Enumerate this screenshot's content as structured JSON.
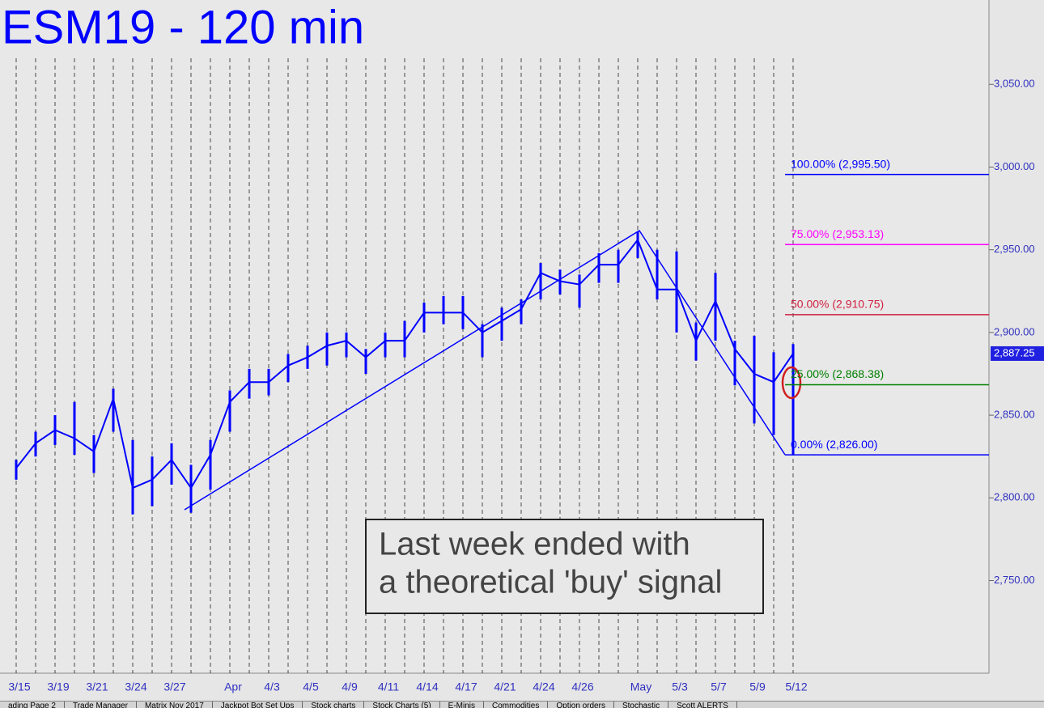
{
  "chart_data": {
    "type": "price",
    "title": "ESM19 - 120 min",
    "categories": [
      "3/15",
      null,
      "3/19",
      null,
      "3/21",
      null,
      "3/24",
      null,
      "3/27",
      null,
      null,
      "Apr",
      null,
      "4/3",
      null,
      "4/5",
      null,
      "4/9",
      null,
      "4/11",
      null,
      "4/14",
      null,
      "4/17",
      null,
      "4/21",
      null,
      "4/24",
      null,
      "4/26",
      null,
      null,
      "May",
      null,
      "5/3",
      null,
      "5/7",
      null,
      "5/9",
      null,
      "5/12"
    ],
    "series": [
      {
        "name": "close",
        "color": "#0000ff",
        "values": [
          2818,
          2833,
          2841,
          2836,
          2828,
          2860,
          2806,
          2811,
          2823,
          2806,
          2826,
          2858,
          2870,
          2870,
          2880,
          2885,
          2892,
          2895,
          2885,
          2895,
          2895,
          2912,
          2912,
          2912,
          2900,
          2907,
          2914,
          2936,
          2931,
          2929,
          2941,
          2941,
          2956,
          2926,
          2926,
          2895,
          2919,
          2890,
          2875,
          2870,
          2887.25
        ]
      },
      {
        "name": "high",
        "color": "#0000ff",
        "values": [
          2823,
          2840,
          2850,
          2858,
          2838,
          2866,
          2835,
          2825,
          2833,
          2820,
          2835,
          2865,
          2878,
          2878,
          2887,
          2892,
          2900,
          2900,
          2890,
          2900,
          2907,
          2918,
          2922,
          2922,
          2905,
          2915,
          2920,
          2942,
          2938,
          2935,
          2948,
          2950,
          2961,
          2950,
          2949,
          2906,
          2936,
          2895,
          2898,
          2888,
          2893
        ]
      },
      {
        "name": "low",
        "color": "#0000ff",
        "values": [
          2811,
          2825,
          2832,
          2826,
          2815,
          2840,
          2790,
          2795,
          2808,
          2791,
          2805,
          2840,
          2860,
          2862,
          2870,
          2878,
          2880,
          2885,
          2875,
          2885,
          2885,
          2900,
          2905,
          2902,
          2885,
          2895,
          2905,
          2920,
          2923,
          2915,
          2930,
          2930,
          2945,
          2920,
          2900,
          2883,
          2895,
          2868,
          2845,
          2838,
          2826
        ]
      }
    ],
    "ylim": [
      2694,
      3101
    ],
    "yticks": [
      {
        "value": 2750,
        "label": "2,750.00"
      },
      {
        "value": 2800,
        "label": "2,800.00"
      },
      {
        "value": 2850,
        "label": "2,850.00"
      },
      {
        "value": 2900,
        "label": "2,900.00"
      },
      {
        "value": 2950,
        "label": "2,950.00"
      },
      {
        "value": 3000,
        "label": "3,000.00"
      },
      {
        "value": 3050,
        "label": "3,050.00"
      }
    ],
    "last_price": {
      "value": 2887.25,
      "label": "2,887.25"
    },
    "levels": [
      {
        "label": "100.00% (2,995.50)",
        "value": 2995.5,
        "color": "#0000ff"
      },
      {
        "label": "75.00% (2,953.13)",
        "value": 2953.13,
        "color": "#ff00ff"
      },
      {
        "label": "50.00% (2,910.75)",
        "value": 2910.75,
        "color": "#d02040"
      },
      {
        "label": "25.00% (2,868.38)",
        "value": 2868.38,
        "color": "#008000"
      },
      {
        "label": "0.00% (2,826.00)",
        "value": 2826,
        "color": "#0000ff"
      }
    ],
    "annotation": [
      "Last week ended with",
      "a theoretical 'buy' signal"
    ],
    "grid": true
  },
  "tabs": [
    "ading Page 2",
    "Trade Manager",
    "Matrix Nov 2017",
    "Jackpot Bot Set Ups",
    "Stock charts",
    "Stock Charts (5)",
    "E-Minis",
    "Commodities",
    "Option orders",
    "Stochastic",
    "Scott ALERTS"
  ]
}
